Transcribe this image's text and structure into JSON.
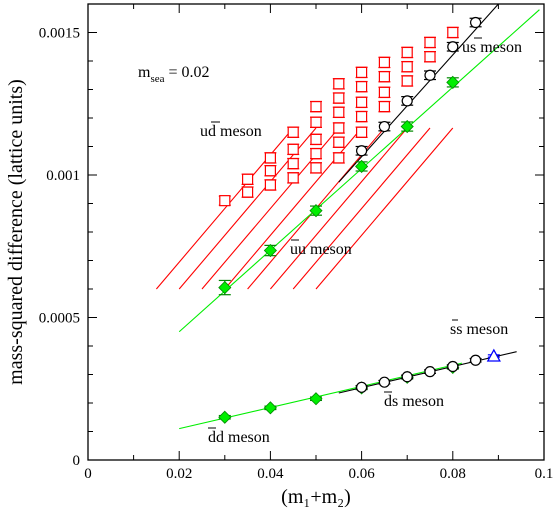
{
  "chart_data": {
    "type": "scatter",
    "xlabel": "(m₁+m₂)",
    "ylabel": "mass-squared difference (lattice units)",
    "xlim": [
      0,
      0.1
    ],
    "ylim": [
      0,
      0.0016
    ],
    "xticks": [
      0,
      0.02,
      0.04,
      0.06,
      0.08,
      0.1
    ],
    "xtick_labels": [
      "0",
      "0.02",
      "0.04",
      "0.06",
      "0.08",
      "0.1"
    ],
    "yticks": [
      0,
      0.0005,
      0.001,
      0.0015
    ],
    "ytick_labels": [
      "0",
      "0.0005",
      "0.001",
      "0.0015"
    ],
    "grid": false,
    "annotations": {
      "msea": "m",
      "msea_sub": "sea",
      "msea_value": " = 0.02",
      "ud_meson": "ud meson",
      "us_meson": "us meson",
      "uu_meson": "uu meson",
      "ss_meson": "ss meson",
      "ds_meson": "ds meson",
      "dd_meson": "dd meson"
    },
    "colors": {
      "ud": "#ff0000",
      "us": "#000000",
      "uu": "#00ee00",
      "uu_marker_edge": "#008800",
      "ss": "#0000ff"
    },
    "series": [
      {
        "id": "ud",
        "marker": "square",
        "points": [
          {
            "x": 0.03,
            "y": 0.00091,
            "err": 1.6e-05
          },
          {
            "x": 0.035,
            "y": 0.00094,
            "err": 1.8e-05
          },
          {
            "x": 0.035,
            "y": 0.000985,
            "err": 1.8e-05
          },
          {
            "x": 0.04,
            "y": 0.000965,
            "err": 1.8e-05
          },
          {
            "x": 0.04,
            "y": 0.001015,
            "err": 1.8e-05
          },
          {
            "x": 0.04,
            "y": 0.00106,
            "err": 1.8e-05
          },
          {
            "x": 0.045,
            "y": 0.00099,
            "err": 1.8e-05
          },
          {
            "x": 0.045,
            "y": 0.00104,
            "err": 1.8e-05
          },
          {
            "x": 0.045,
            "y": 0.00109,
            "err": 1.8e-05
          },
          {
            "x": 0.045,
            "y": 0.00115,
            "err": 1.8e-05
          },
          {
            "x": 0.05,
            "y": 0.001025,
            "err": 1.8e-05
          },
          {
            "x": 0.05,
            "y": 0.001075,
            "err": 1.8e-05
          },
          {
            "x": 0.05,
            "y": 0.001125,
            "err": 1.8e-05
          },
          {
            "x": 0.05,
            "y": 0.001185,
            "err": 1.8e-05
          },
          {
            "x": 0.05,
            "y": 0.00124,
            "err": 1.8e-05
          },
          {
            "x": 0.055,
            "y": 0.00106,
            "err": 1.8e-05
          },
          {
            "x": 0.055,
            "y": 0.001115,
            "err": 1.8e-05
          },
          {
            "x": 0.055,
            "y": 0.001165,
            "err": 1.8e-05
          },
          {
            "x": 0.055,
            "y": 0.00122,
            "err": 1.8e-05
          },
          {
            "x": 0.055,
            "y": 0.00127,
            "err": 1.8e-05
          },
          {
            "x": 0.055,
            "y": 0.00132,
            "err": 1.8e-05
          },
          {
            "x": 0.06,
            "y": 0.00115,
            "err": 1.8e-05
          },
          {
            "x": 0.06,
            "y": 0.001205,
            "err": 1.8e-05
          },
          {
            "x": 0.06,
            "y": 0.001255,
            "err": 1.8e-05
          },
          {
            "x": 0.06,
            "y": 0.00131,
            "err": 1.8e-05
          },
          {
            "x": 0.06,
            "y": 0.00136,
            "err": 1.8e-05
          },
          {
            "x": 0.065,
            "y": 0.00124,
            "err": 1.8e-05
          },
          {
            "x": 0.065,
            "y": 0.00129,
            "err": 1.8e-05
          },
          {
            "x": 0.065,
            "y": 0.001345,
            "err": 1.8e-05
          },
          {
            "x": 0.065,
            "y": 0.001395,
            "err": 1.8e-05
          },
          {
            "x": 0.07,
            "y": 0.00133,
            "err": 1.8e-05
          },
          {
            "x": 0.07,
            "y": 0.00138,
            "err": 1.8e-05
          },
          {
            "x": 0.07,
            "y": 0.00143,
            "err": 1.8e-05
          },
          {
            "x": 0.075,
            "y": 0.001415,
            "err": 1.8e-05
          },
          {
            "x": 0.075,
            "y": 0.001465,
            "err": 1.8e-05
          },
          {
            "x": 0.08,
            "y": 0.0015,
            "err": 1.8e-05
          }
        ],
        "fit_lines": [
          {
            "x": [
              0.015,
              0.045
            ],
            "y": [
              0.0006,
              0.001165
            ]
          },
          {
            "x": [
              0.02,
              0.05
            ],
            "y": [
              0.0006,
              0.001165
            ]
          },
          {
            "x": [
              0.025,
              0.055
            ],
            "y": [
              0.0006,
              0.001165
            ]
          },
          {
            "x": [
              0.03,
              0.06
            ],
            "y": [
              0.0006,
              0.001165
            ]
          },
          {
            "x": [
              0.035,
              0.065
            ],
            "y": [
              0.0006,
              0.001165
            ]
          },
          {
            "x": [
              0.04,
              0.07
            ],
            "y": [
              0.0006,
              0.001165
            ]
          },
          {
            "x": [
              0.045,
              0.075
            ],
            "y": [
              0.0006,
              0.001165
            ]
          },
          {
            "x": [
              0.05,
              0.08
            ],
            "y": [
              0.0006,
              0.001165
            ]
          }
        ]
      },
      {
        "id": "us",
        "marker": "circle",
        "points": [
          {
            "x": 0.06,
            "y": 0.001085,
            "err": 1.5e-05
          },
          {
            "x": 0.065,
            "y": 0.00117,
            "err": 1.5e-05
          },
          {
            "x": 0.07,
            "y": 0.00126,
            "err": 1.5e-05
          },
          {
            "x": 0.075,
            "y": 0.00135,
            "err": 1.5e-05
          },
          {
            "x": 0.08,
            "y": 0.00145,
            "err": 1.5e-05
          },
          {
            "x": 0.085,
            "y": 0.001535,
            "err": 1.5e-05
          }
        ],
        "fit_lines": [
          {
            "x": [
              0.055,
              0.09
            ],
            "y": [
              0.000975,
              0.0016
            ]
          }
        ]
      },
      {
        "id": "uu",
        "marker": "diamond",
        "points": [
          {
            "x": 0.03,
            "y": 0.000605,
            "err": 2.5e-05
          },
          {
            "x": 0.04,
            "y": 0.000735,
            "err": 1.8e-05
          },
          {
            "x": 0.05,
            "y": 0.000875,
            "err": 1.6e-05
          },
          {
            "x": 0.06,
            "y": 0.00103,
            "err": 1.6e-05
          },
          {
            "x": 0.07,
            "y": 0.00117,
            "err": 1.6e-05
          },
          {
            "x": 0.08,
            "y": 0.001325,
            "err": 1.6e-05
          }
        ],
        "fit_lines": [
          {
            "x": [
              0.02,
              0.099
            ],
            "y": [
              0.00045,
              0.00158
            ]
          }
        ]
      },
      {
        "id": "dd",
        "marker": "diamond",
        "points": [
          {
            "x": 0.03,
            "y": 0.00015,
            "err": 6e-06
          },
          {
            "x": 0.04,
            "y": 0.000183,
            "err": 6e-06
          },
          {
            "x": 0.05,
            "y": 0.000215,
            "err": 6e-06
          },
          {
            "x": 0.06,
            "y": 0.000253,
            "err": 6e-06
          },
          {
            "x": 0.07,
            "y": 0.00029,
            "err": 6e-06
          },
          {
            "x": 0.08,
            "y": 0.000325,
            "err": 6e-06
          }
        ],
        "fit_lines": [
          {
            "x": [
              0.02,
              0.082
            ],
            "y": [
              0.00011,
              0.00034
            ]
          }
        ]
      },
      {
        "id": "ds",
        "marker": "circle",
        "points": [
          {
            "x": 0.06,
            "y": 0.000255,
            "err": 6e-06
          },
          {
            "x": 0.065,
            "y": 0.000273,
            "err": 6e-06
          },
          {
            "x": 0.07,
            "y": 0.000292,
            "err": 6e-06
          },
          {
            "x": 0.075,
            "y": 0.00031,
            "err": 6e-06
          },
          {
            "x": 0.08,
            "y": 0.000328,
            "err": 6e-06
          },
          {
            "x": 0.085,
            "y": 0.00035,
            "err": 6e-06
          }
        ],
        "fit_lines": [
          {
            "x": [
              0.055,
              0.094
            ],
            "y": [
              0.000235,
              0.00038
            ]
          }
        ]
      },
      {
        "id": "ss",
        "marker": "triangle",
        "points": [
          {
            "x": 0.089,
            "y": 0.000365,
            "err": 4e-06
          }
        ],
        "fit_lines": []
      }
    ]
  }
}
